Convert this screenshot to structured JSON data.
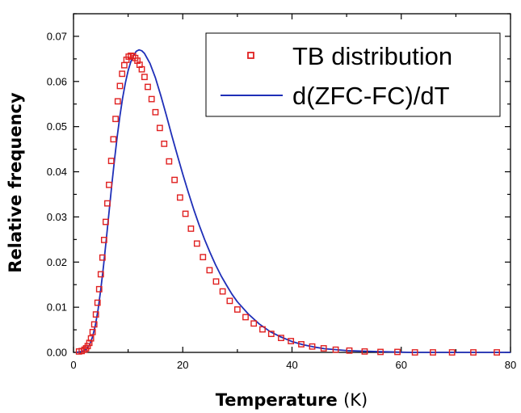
{
  "chart_data": {
    "type": "scatter",
    "xlabel": "Temperature",
    "xlabel_unit": "(K)",
    "ylabel": "Relative frequency",
    "xlim": [
      0,
      80
    ],
    "ylim": [
      0,
      0.075
    ],
    "xticks": [
      "0",
      "20",
      "40",
      "60",
      "80"
    ],
    "yticks": [
      "0.00",
      "0.01",
      "0.02",
      "0.03",
      "0.04",
      "0.05",
      "0.06",
      "0.07"
    ],
    "grid": false,
    "legend_position": "top-right",
    "colors": {
      "markers": "#e02020",
      "line": "#1f2fb8"
    },
    "series": [
      {
        "name": "TB distribution",
        "style": "open-square-markers",
        "x": [
          1.0,
          1.5,
          2.0,
          2.3,
          2.6,
          2.9,
          3.2,
          3.5,
          3.8,
          4.1,
          4.4,
          4.7,
          5.0,
          5.3,
          5.6,
          5.9,
          6.2,
          6.5,
          6.9,
          7.3,
          7.7,
          8.1,
          8.5,
          8.9,
          9.3,
          9.7,
          10.1,
          10.5,
          10.9,
          11.3,
          11.7,
          12.1,
          12.5,
          13.0,
          13.6,
          14.3,
          15.0,
          15.8,
          16.6,
          17.5,
          18.5,
          19.5,
          20.5,
          21.5,
          22.6,
          23.7,
          24.9,
          26.1,
          27.3,
          28.6,
          30.0,
          31.5,
          33.0,
          34.6,
          36.2,
          38.0,
          39.8,
          41.7,
          43.7,
          45.8,
          48.0,
          50.5,
          53.3,
          56.2,
          59.3,
          62.5,
          65.8,
          69.3,
          73.2,
          77.5
        ],
        "y": [
          0.0002,
          0.0003,
          0.0006,
          0.0009,
          0.0014,
          0.0021,
          0.0031,
          0.0045,
          0.0062,
          0.0084,
          0.011,
          0.014,
          0.0173,
          0.021,
          0.0249,
          0.0289,
          0.033,
          0.0371,
          0.0424,
          0.0472,
          0.0517,
          0.0556,
          0.059,
          0.0617,
          0.0636,
          0.0648,
          0.0655,
          0.0657,
          0.0656,
          0.0652,
          0.0646,
          0.0637,
          0.0627,
          0.061,
          0.0588,
          0.0561,
          0.0532,
          0.0497,
          0.0462,
          0.0423,
          0.0382,
          0.0343,
          0.0307,
          0.0274,
          0.0241,
          0.0211,
          0.0182,
          0.0157,
          0.0135,
          0.0114,
          0.0095,
          0.0078,
          0.0064,
          0.0051,
          0.0041,
          0.0032,
          0.0025,
          0.0018,
          0.0013,
          0.0009,
          0.0006,
          0.0004,
          0.0002,
          0.0001,
          0.0001,
          0.0,
          0.0,
          0.0,
          0.0,
          0.0
        ]
      },
      {
        "name": "d(ZFC-FC)/dT",
        "style": "line",
        "x": [
          0.5,
          1.0,
          1.5,
          2.0,
          2.5,
          3.0,
          3.5,
          4.0,
          4.5,
          5.0,
          5.5,
          6.0,
          6.5,
          7.0,
          7.5,
          8.0,
          8.5,
          9.0,
          9.5,
          10.0,
          10.5,
          11.0,
          11.5,
          12.0,
          12.5,
          13.0,
          14.0,
          15.0,
          16.0,
          17.0,
          18.0,
          19.0,
          20.0,
          21.0,
          22.0,
          23.0,
          24.0,
          25.0,
          26.0,
          27.0,
          28.0,
          29.0,
          30.0,
          32.0,
          34.0,
          36.0,
          38.0,
          40.0,
          42.0,
          44.0,
          46.0,
          48.0,
          50.0,
          52.0,
          55.0,
          58.0,
          62.0,
          66.0,
          70.0,
          75.0,
          80.0
        ],
        "y": [
          0.0,
          0.0001,
          0.0002,
          0.0004,
          0.0009,
          0.0018,
          0.0035,
          0.006,
          0.0095,
          0.014,
          0.0192,
          0.025,
          0.031,
          0.037,
          0.0426,
          0.0478,
          0.0524,
          0.0564,
          0.0597,
          0.0624,
          0.0644,
          0.0658,
          0.0667,
          0.067,
          0.0668,
          0.0662,
          0.064,
          0.0608,
          0.0568,
          0.0525,
          0.048,
          0.0437,
          0.0395,
          0.0355,
          0.0317,
          0.0282,
          0.025,
          0.0221,
          0.0194,
          0.017,
          0.0149,
          0.0129,
          0.0112,
          0.0085,
          0.0063,
          0.0046,
          0.0034,
          0.0024,
          0.0017,
          0.0012,
          0.0008,
          0.0006,
          0.0004,
          0.0003,
          0.0002,
          0.0001,
          0.0,
          0.0,
          0.0,
          0.0,
          0.0
        ]
      }
    ]
  }
}
